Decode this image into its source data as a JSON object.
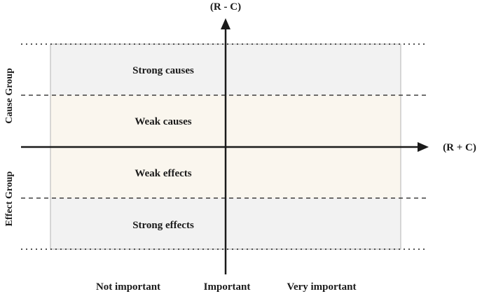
{
  "axes": {
    "y_label": "(R - C)",
    "x_label": "(R + C)"
  },
  "groups": {
    "cause": "Cause Group",
    "effect": "Effect Group"
  },
  "bands": [
    {
      "label": "Strong causes",
      "fill": "#f2f2f2"
    },
    {
      "label": "Weak causes",
      "fill": "#faf6ee"
    },
    {
      "label": "Weak effects",
      "fill": "#faf6ee"
    },
    {
      "label": "Strong effects",
      "fill": "#f2f2f2"
    }
  ],
  "importance": {
    "low": "Not important",
    "mid": "Important",
    "high": "Very important"
  },
  "colors": {
    "ink": "#1a1a1a",
    "border": "#b3b3b3"
  }
}
